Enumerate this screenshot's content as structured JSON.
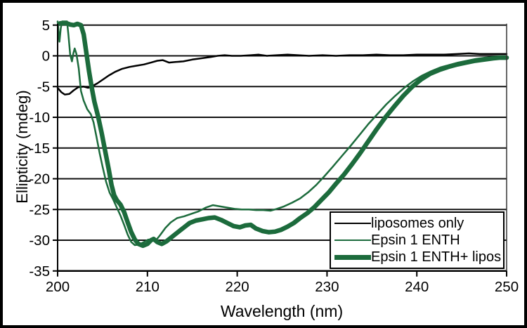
{
  "figure_title": "",
  "chart_data": {
    "type": "line",
    "title": "",
    "xlabel": "Wavelength (nm)",
    "ylabel": "Ellipticity (mdeg)",
    "xlim": [
      200,
      250
    ],
    "ylim": [
      -35,
      5
    ],
    "x_ticks": [
      200,
      210,
      220,
      230,
      240,
      250
    ],
    "y_ticks": [
      5,
      0,
      -5,
      -10,
      -15,
      -20,
      -25,
      -30,
      -35
    ],
    "grid": true,
    "legend_position": "lower right",
    "legend": {
      "items": [
        {
          "label": "liposomes only",
          "color": "#000000",
          "thickness": 2
        },
        {
          "label": "Epsin 1 ENTH",
          "color": "#1c6b3c",
          "thickness": 2
        },
        {
          "label": "Epsin 1 ENTH+ lipos",
          "color": "#1c6b3c",
          "thickness": 7
        }
      ]
    },
    "series": [
      {
        "name": "liposomes only",
        "color": "#000000",
        "width": 2.5,
        "points": [
          [
            200,
            -5.2
          ],
          [
            200.4,
            -5.9
          ],
          [
            200.8,
            -6.3
          ],
          [
            201.3,
            -6.2
          ],
          [
            201.8,
            -5.6
          ],
          [
            202.3,
            -5.1
          ],
          [
            202.9,
            -5.0
          ],
          [
            203.4,
            -5.2
          ],
          [
            203.9,
            -4.9
          ],
          [
            204.4,
            -4.5
          ],
          [
            205.0,
            -3.9
          ],
          [
            205.7,
            -3.2
          ],
          [
            206.4,
            -2.6
          ],
          [
            207.2,
            -2.1
          ],
          [
            208.0,
            -1.8
          ],
          [
            208.8,
            -1.6
          ],
          [
            209.6,
            -1.4
          ],
          [
            210.4,
            -1.1
          ],
          [
            211.1,
            -0.8
          ],
          [
            211.7,
            -0.7
          ],
          [
            212.4,
            -1.1
          ],
          [
            213.1,
            -1.0
          ],
          [
            214.0,
            -0.9
          ],
          [
            215.0,
            -0.6
          ],
          [
            216.0,
            -0.4
          ],
          [
            217.0,
            -0.2
          ],
          [
            217.8,
            0.0
          ],
          [
            218.6,
            0.1
          ],
          [
            219.4,
            0.0
          ],
          [
            220.4,
            0.0
          ],
          [
            221.5,
            0.1
          ],
          [
            222.4,
            0.2
          ],
          [
            223.3,
            0.0
          ],
          [
            224.4,
            0.1
          ],
          [
            225.6,
            0.2
          ],
          [
            226.8,
            0.1
          ],
          [
            228.0,
            0.0
          ],
          [
            229.5,
            0.1
          ],
          [
            231.0,
            0.0
          ],
          [
            232.5,
            0.1
          ],
          [
            234.0,
            0.1
          ],
          [
            235.5,
            0.2
          ],
          [
            237.0,
            0.1
          ],
          [
            238.5,
            0.1
          ],
          [
            240.0,
            0.2
          ],
          [
            241.5,
            0.2
          ],
          [
            243.0,
            0.2
          ],
          [
            244.5,
            0.3
          ],
          [
            245.8,
            0.4
          ],
          [
            247.0,
            0.3
          ],
          [
            248.5,
            0.3
          ],
          [
            250.0,
            0.3
          ]
        ]
      },
      {
        "name": "Epsin 1 ENTH",
        "color": "#1c6b3c",
        "width": 2.5,
        "points": [
          [
            200.0,
            5.6
          ],
          [
            200.1,
            4.0
          ],
          [
            200.2,
            2.3
          ],
          [
            200.35,
            4.5
          ],
          [
            200.5,
            5.6
          ],
          [
            201.05,
            5.6
          ],
          [
            201.2,
            3.5
          ],
          [
            201.4,
            0.2
          ],
          [
            201.6,
            -0.9
          ],
          [
            201.75,
            0.4
          ],
          [
            201.9,
            1.2
          ],
          [
            202.1,
            0.3
          ],
          [
            202.35,
            -2.0
          ],
          [
            202.6,
            -5.7
          ],
          [
            202.9,
            -7.3
          ],
          [
            203.3,
            -8.7
          ],
          [
            203.7,
            -9.5
          ],
          [
            204.0,
            -10.8
          ],
          [
            204.3,
            -13.0
          ],
          [
            204.7,
            -16.0
          ],
          [
            205.0,
            -18.0
          ],
          [
            205.4,
            -20.5
          ],
          [
            205.8,
            -22.3
          ],
          [
            206.2,
            -23.4
          ],
          [
            206.6,
            -24.7
          ],
          [
            207.0,
            -26.0
          ],
          [
            207.4,
            -27.5
          ],
          [
            207.8,
            -29.1
          ],
          [
            208.2,
            -30.3
          ],
          [
            208.6,
            -30.8
          ],
          [
            209.1,
            -30.7
          ],
          [
            209.6,
            -30.3
          ],
          [
            210.1,
            -29.9
          ],
          [
            210.5,
            -30.0
          ],
          [
            210.9,
            -30.1
          ],
          [
            211.4,
            -29.2
          ],
          [
            212.0,
            -28.0
          ],
          [
            212.6,
            -27.1
          ],
          [
            213.3,
            -26.4
          ],
          [
            214.1,
            -26.1
          ],
          [
            214.9,
            -25.7
          ],
          [
            215.7,
            -25.3
          ],
          [
            216.5,
            -24.7
          ],
          [
            217.3,
            -24.3
          ],
          [
            218.1,
            -24.5
          ],
          [
            218.9,
            -24.7
          ],
          [
            219.7,
            -24.9
          ],
          [
            220.5,
            -25.0
          ],
          [
            221.3,
            -25.0
          ],
          [
            222.1,
            -25.1
          ],
          [
            222.9,
            -25.1
          ],
          [
            223.7,
            -25.2
          ],
          [
            224.4,
            -24.9
          ],
          [
            225.2,
            -24.5
          ],
          [
            226.1,
            -23.9
          ],
          [
            227.0,
            -23.2
          ],
          [
            227.9,
            -22.2
          ],
          [
            228.8,
            -21.0
          ],
          [
            229.7,
            -19.6
          ],
          [
            230.6,
            -18.1
          ],
          [
            231.6,
            -16.4
          ],
          [
            232.6,
            -14.7
          ],
          [
            233.6,
            -12.9
          ],
          [
            234.6,
            -11.1
          ],
          [
            235.6,
            -9.5
          ],
          [
            236.6,
            -7.9
          ],
          [
            237.6,
            -6.5
          ],
          [
            238.6,
            -5.2
          ],
          [
            239.6,
            -4.1
          ],
          [
            240.6,
            -3.2
          ],
          [
            241.6,
            -2.5
          ],
          [
            242.6,
            -1.9
          ],
          [
            243.6,
            -1.5
          ],
          [
            244.6,
            -1.1
          ],
          [
            245.6,
            -0.8
          ],
          [
            246.6,
            -0.5
          ],
          [
            247.6,
            -0.3
          ],
          [
            248.8,
            -0.2
          ],
          [
            250.0,
            -0.1
          ]
        ]
      },
      {
        "name": "Epsin 1 ENTH+ lipos",
        "color": "#1c6b3c",
        "width": 6.5,
        "points": [
          [
            200.3,
            5.3
          ],
          [
            201.0,
            5.3
          ],
          [
            201.4,
            5.1
          ],
          [
            201.8,
            5.0
          ],
          [
            202.2,
            5.2
          ],
          [
            202.6,
            5.0
          ],
          [
            202.9,
            3.5
          ],
          [
            203.2,
            0.5
          ],
          [
            203.5,
            -2.5
          ],
          [
            203.8,
            -5.2
          ],
          [
            204.1,
            -7.5
          ],
          [
            204.5,
            -9.8
          ],
          [
            204.9,
            -12.5
          ],
          [
            205.3,
            -15.5
          ],
          [
            205.7,
            -18.5
          ],
          [
            206.0,
            -21.0
          ],
          [
            206.3,
            -22.7
          ],
          [
            206.6,
            -23.5
          ],
          [
            207.0,
            -24.2
          ],
          [
            207.4,
            -25.4
          ],
          [
            207.8,
            -27.1
          ],
          [
            208.2,
            -28.7
          ],
          [
            208.6,
            -29.9
          ],
          [
            209.0,
            -30.6
          ],
          [
            209.5,
            -30.9
          ],
          [
            210.0,
            -30.6
          ],
          [
            210.4,
            -30.0
          ],
          [
            210.7,
            -29.8
          ],
          [
            211.1,
            -30.3
          ],
          [
            211.6,
            -30.6
          ],
          [
            212.1,
            -30.2
          ],
          [
            212.7,
            -29.5
          ],
          [
            213.3,
            -28.8
          ],
          [
            214.0,
            -28.0
          ],
          [
            214.7,
            -27.2
          ],
          [
            215.4,
            -26.8
          ],
          [
            216.1,
            -26.6
          ],
          [
            216.8,
            -26.4
          ],
          [
            217.5,
            -26.3
          ],
          [
            218.2,
            -26.7
          ],
          [
            218.9,
            -27.2
          ],
          [
            219.6,
            -27.7
          ],
          [
            220.3,
            -27.9
          ],
          [
            220.9,
            -27.6
          ],
          [
            221.5,
            -27.5
          ],
          [
            222.1,
            -28.1
          ],
          [
            222.8,
            -28.5
          ],
          [
            223.5,
            -28.7
          ],
          [
            224.2,
            -28.6
          ],
          [
            224.9,
            -28.3
          ],
          [
            225.6,
            -27.8
          ],
          [
            226.3,
            -27.2
          ],
          [
            227.0,
            -26.4
          ],
          [
            227.8,
            -25.6
          ],
          [
            228.6,
            -24.6
          ],
          [
            229.4,
            -23.4
          ],
          [
            230.2,
            -22.2
          ],
          [
            231.0,
            -20.8
          ],
          [
            231.9,
            -19.3
          ],
          [
            232.8,
            -17.6
          ],
          [
            233.7,
            -15.8
          ],
          [
            234.6,
            -13.9
          ],
          [
            235.5,
            -12.0
          ],
          [
            236.5,
            -10.0
          ],
          [
            237.5,
            -8.2
          ],
          [
            238.5,
            -6.5
          ],
          [
            239.5,
            -5.0
          ],
          [
            240.5,
            -3.8
          ],
          [
            241.5,
            -2.9
          ],
          [
            242.5,
            -2.3
          ],
          [
            243.5,
            -1.8
          ],
          [
            244.5,
            -1.4
          ],
          [
            245.5,
            -1.1
          ],
          [
            246.5,
            -0.8
          ],
          [
            247.5,
            -0.6
          ],
          [
            248.5,
            -0.4
          ],
          [
            249.2,
            -0.3
          ],
          [
            250.0,
            -0.3
          ]
        ]
      }
    ]
  }
}
